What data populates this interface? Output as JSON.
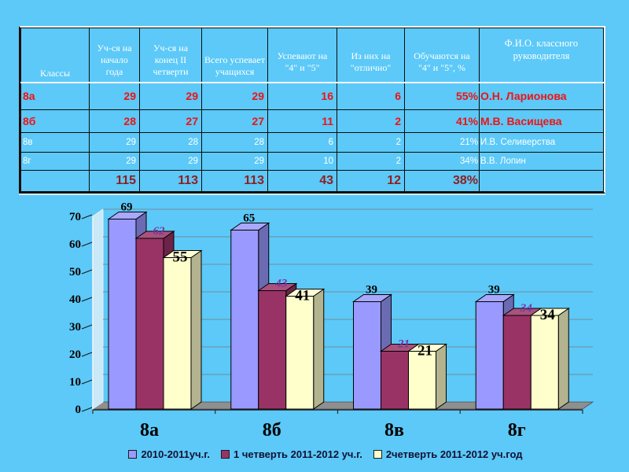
{
  "slide": {
    "background_color": "#5CC9F8"
  },
  "table": {
    "columns": [
      "Классы",
      "Уч-ся на начало года",
      "Уч-ся на конец  II четверти",
      "Всего успевает учащихся",
      "Успевают на \"4\" и \"5\"",
      "Из них  на \"отлично\"",
      "Обучаются на \"4\" и \"5\", %",
      "Ф.И.О. классного руководителя"
    ],
    "rows": [
      {
        "style": "red",
        "cells": [
          "8а",
          "29",
          "29",
          "29",
          "16",
          "6",
          "55%",
          "О.Н. Ларионова"
        ]
      },
      {
        "style": "red",
        "cells": [
          "8б",
          "28",
          "27",
          "27",
          "11",
          "2",
          "41%",
          "М.В. Васищева"
        ]
      },
      {
        "style": "white",
        "cells": [
          "8в",
          "29",
          "28",
          "28",
          "6",
          "2",
          "21%",
          "И.В. Селиверства"
        ]
      },
      {
        "style": "white",
        "cells": [
          "8г",
          "29",
          "29",
          "29",
          "10",
          "2",
          "34%",
          "В.В. Лопин"
        ]
      },
      {
        "style": "total",
        "cells": [
          "",
          "115",
          "113",
          "113",
          "43",
          "12",
          "38%",
          ""
        ]
      }
    ]
  },
  "chart_data": {
    "type": "bar",
    "subtype": "3d-clustered-column",
    "title": "",
    "xlabel": "",
    "ylabel": "",
    "categories": [
      "8а",
      "8б",
      "8в",
      "8г"
    ],
    "series": [
      {
        "name": "2010-2011уч.г.",
        "values": [
          69,
          65,
          39,
          39
        ],
        "color": "#9999FF",
        "label_color": "#000000"
      },
      {
        "name": "1 четверть  2011-2012 уч.г.",
        "values": [
          62,
          43,
          21,
          34
        ],
        "color": "#993366",
        "label_color": "#7A35A0"
      },
      {
        "name": "2четверть 2011-2012 уч.год",
        "values": [
          55,
          41,
          21,
          34
        ],
        "color": "#FFFFCC",
        "label_color": "#000000"
      }
    ],
    "ylim": [
      0,
      70
    ],
    "yticks": [
      0,
      10,
      20,
      30,
      40,
      50,
      60,
      70
    ],
    "grid": true,
    "legend_position": "bottom",
    "floor_color": "#8F8F8F",
    "gridline_color": "#6F8D9B"
  }
}
